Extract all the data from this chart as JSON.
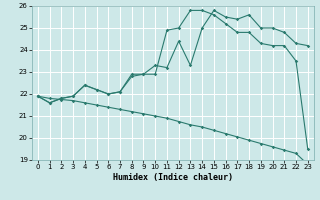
{
  "xlabel": "Humidex (Indice chaleur)",
  "x": [
    0,
    1,
    2,
    3,
    4,
    5,
    6,
    7,
    8,
    9,
    10,
    11,
    12,
    13,
    14,
    15,
    16,
    17,
    18,
    19,
    20,
    21,
    22,
    23
  ],
  "line_jagged": [
    21.9,
    21.6,
    21.8,
    21.9,
    22.4,
    22.2,
    22.0,
    22.1,
    22.9,
    22.9,
    23.3,
    23.2,
    24.4,
    23.3,
    25.0,
    25.8,
    25.5,
    25.4,
    25.6,
    25.0,
    25.0,
    24.8,
    24.3,
    24.2
  ],
  "line_smooth": [
    21.9,
    21.6,
    21.8,
    21.9,
    22.4,
    22.2,
    22.0,
    22.1,
    22.8,
    22.9,
    22.9,
    24.9,
    25.0,
    25.8,
    25.8,
    25.6,
    25.2,
    24.8,
    24.8,
    24.3,
    24.2,
    24.2,
    23.5,
    19.5
  ],
  "line_diagonal": [
    21.9,
    21.8,
    21.75,
    21.7,
    21.6,
    21.5,
    21.4,
    21.3,
    21.2,
    21.1,
    21.0,
    20.9,
    20.75,
    20.6,
    20.5,
    20.35,
    20.2,
    20.05,
    19.9,
    19.75,
    19.6,
    19.45,
    19.3,
    18.8
  ],
  "color": "#2a7a6e",
  "bg_color": "#cde8e8",
  "grid_color": "#b0d8d8",
  "ylim": [
    19,
    26
  ],
  "yticks": [
    19,
    20,
    21,
    22,
    23,
    24,
    25,
    26
  ],
  "xticks": [
    0,
    1,
    2,
    3,
    4,
    5,
    6,
    7,
    8,
    9,
    10,
    11,
    12,
    13,
    14,
    15,
    16,
    17,
    18,
    19,
    20,
    21,
    22,
    23
  ],
  "marker": "D",
  "markersize": 1.8,
  "linewidth": 0.8
}
